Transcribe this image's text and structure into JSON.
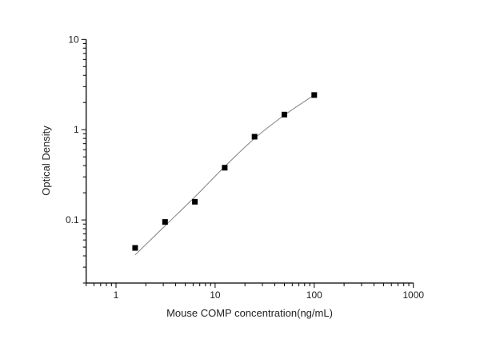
{
  "chart_data": {
    "type": "scatter",
    "title": "",
    "xlabel": "Mouse COMP concentration(ng/mL)",
    "ylabel": "Optical Density",
    "xscale": "log",
    "yscale": "log",
    "xlim": [
      0.5,
      1000
    ],
    "ylim": [
      0.02,
      10
    ],
    "grid": false,
    "x_ticks": [
      1,
      10,
      100,
      1000
    ],
    "x_tick_labels": [
      "1",
      "10",
      "100",
      "1000"
    ],
    "y_ticks": [
      0.1,
      1,
      10
    ],
    "y_tick_labels": [
      "0.1",
      "1",
      "10"
    ],
    "points": {
      "x": [
        1.56,
        3.125,
        6.25,
        12.5,
        25,
        50,
        100
      ],
      "y": [
        0.049,
        0.095,
        0.159,
        0.379,
        0.836,
        1.47,
        2.42
      ]
    },
    "fit_curve": {
      "x": [
        1.56,
        3.125,
        6.25,
        12.5,
        25,
        50,
        100
      ],
      "y": [
        0.041,
        0.086,
        0.18,
        0.39,
        0.8,
        1.45,
        2.42
      ]
    },
    "colors": {
      "marker": "#000000",
      "curve": "#808080",
      "axis": "#000000"
    }
  }
}
